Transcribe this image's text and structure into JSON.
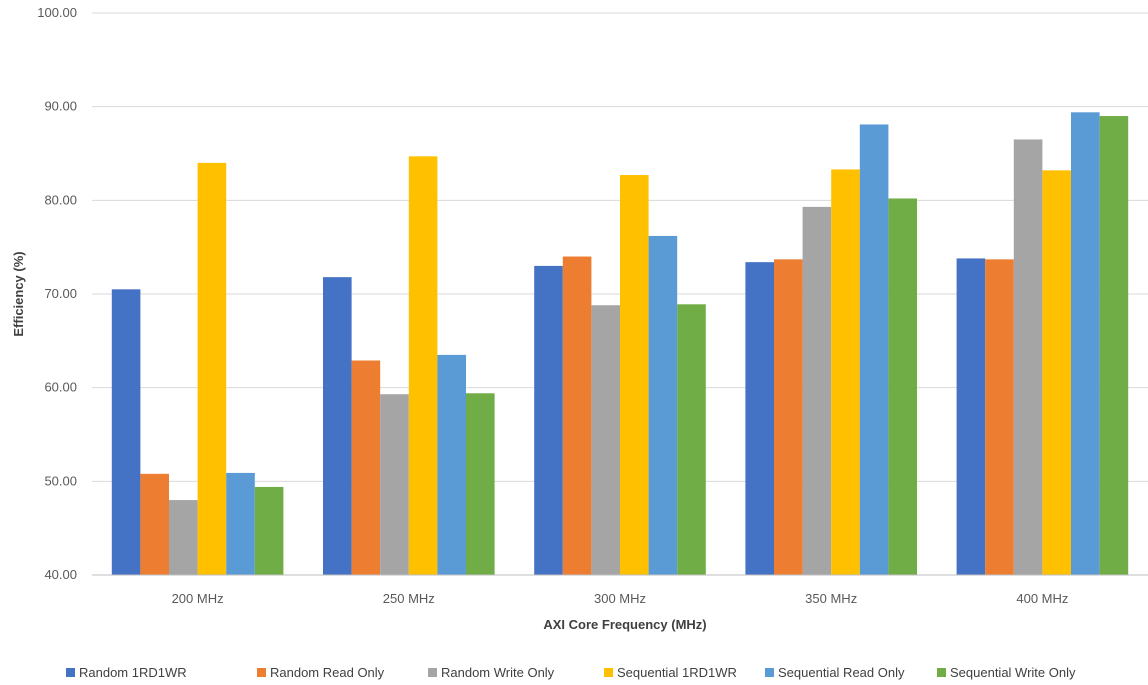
{
  "chart_data": {
    "type": "bar",
    "title": "",
    "xlabel": "AXI Core Frequency (MHz)",
    "ylabel": "Efficiency  (%)",
    "ylim": [
      40,
      100
    ],
    "yticks": [
      40,
      50,
      60,
      70,
      80,
      90,
      100
    ],
    "ytick_labels": [
      "40.00",
      "50.00",
      "60.00",
      "70.00",
      "80.00",
      "90.00",
      "100.00"
    ],
    "grid": true,
    "legend_position": "bottom",
    "categories": [
      "200 MHz",
      "250 MHz",
      "300 MHz",
      "350 MHz",
      "400 MHz"
    ],
    "series": [
      {
        "name": "Random 1RD1WR",
        "color": "#4472C4",
        "values": [
          70.5,
          71.8,
          73.0,
          73.4,
          73.8
        ]
      },
      {
        "name": "Random Read Only",
        "color": "#ED7D31",
        "values": [
          50.8,
          62.9,
          74.0,
          73.7,
          73.7
        ]
      },
      {
        "name": "Random Write Only",
        "color": "#A5A5A5",
        "values": [
          48.0,
          59.3,
          68.8,
          79.3,
          86.5
        ]
      },
      {
        "name": "Sequential 1RD1WR",
        "color": "#FFC000",
        "values": [
          84.0,
          84.7,
          82.7,
          83.3,
          83.2
        ]
      },
      {
        "name": "Sequential Read Only",
        "color": "#5B9BD5",
        "values": [
          50.9,
          63.5,
          76.2,
          88.1,
          89.4
        ]
      },
      {
        "name": "Sequential Write Only",
        "color": "#70AD47",
        "values": [
          49.4,
          59.4,
          68.9,
          80.2,
          89.0
        ]
      }
    ]
  }
}
